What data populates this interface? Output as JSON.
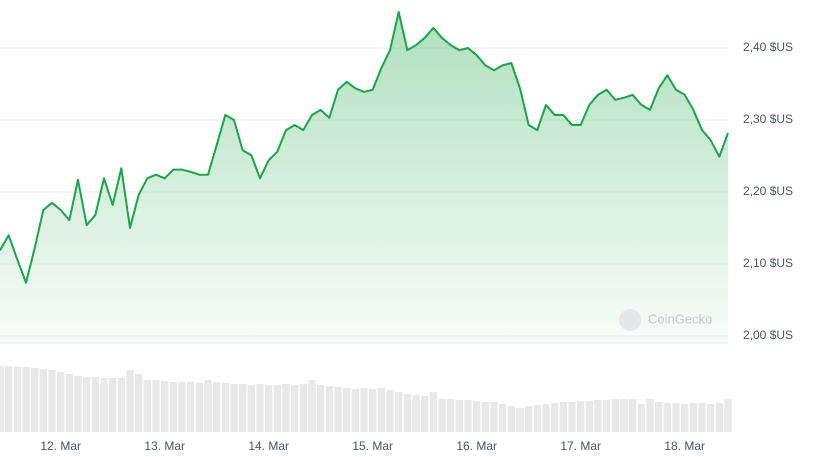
{
  "chart_data": {
    "type": "line",
    "categories": [
      null,
      null,
      null,
      null,
      null,
      null,
      null,
      "12. Mar",
      null,
      null,
      null,
      null,
      null,
      null,
      null,
      null,
      null,
      null,
      null,
      "13. Mar",
      null,
      null,
      null,
      null,
      null,
      null,
      null,
      null,
      null,
      null,
      null,
      "14. Mar",
      null,
      null,
      null,
      null,
      null,
      null,
      null,
      null,
      null,
      null,
      null,
      "15. Mar",
      null,
      null,
      null,
      null,
      null,
      null,
      null,
      null,
      null,
      null,
      null,
      "16. Mar",
      null,
      null,
      null,
      null,
      null,
      null,
      null,
      null,
      null,
      null,
      null,
      "17. Mar",
      null,
      null,
      null,
      null,
      null,
      null,
      null,
      null,
      null,
      null,
      null,
      "18. Mar",
      null,
      null,
      null,
      null,
      null
    ],
    "series": [
      {
        "color": "#1aa547",
        "values": [
          2.119,
          2.14,
          2.106,
          2.074,
          2.122,
          2.175,
          2.185,
          2.175,
          2.161,
          2.217,
          2.154,
          2.168,
          2.219,
          2.182,
          2.233,
          2.15,
          2.196,
          2.219,
          2.224,
          2.219,
          2.231,
          2.231,
          2.228,
          2.224,
          2.224,
          2.265,
          2.307,
          2.3,
          2.258,
          2.251,
          2.219,
          2.244,
          2.256,
          2.286,
          2.293,
          2.286,
          2.307,
          2.314,
          2.303,
          2.342,
          2.353,
          2.344,
          2.339,
          2.342,
          2.372,
          2.397,
          2.45,
          2.397,
          2.404,
          2.414,
          2.428,
          2.414,
          2.404,
          2.397,
          2.4,
          2.39,
          2.376,
          2.369,
          2.376,
          2.379,
          2.344,
          2.293,
          2.286,
          2.321,
          2.307,
          2.307,
          2.293,
          2.293,
          2.321,
          2.335,
          2.342,
          2.328,
          2.331,
          2.335,
          2.321,
          2.314,
          2.344,
          2.362,
          2.342,
          2.335,
          2.314,
          2.286,
          2.272,
          2.249,
          2.282
        ]
      },
      {
        "type": "bar",
        "axis": "y2",
        "color": "#e8e8e8",
        "values": [
          66,
          66,
          65,
          65,
          64,
          63,
          62,
          60,
          58,
          56,
          55,
          55,
          54,
          54,
          54,
          62,
          58,
          52,
          52,
          51,
          50,
          50,
          50,
          49,
          52,
          50,
          49,
          48,
          48,
          47,
          48,
          47,
          47,
          48,
          47,
          48,
          52,
          47,
          46,
          45,
          44,
          43,
          44,
          43,
          44,
          42,
          40,
          38,
          37,
          36,
          40,
          33,
          33,
          32,
          32,
          31,
          30,
          30,
          28,
          26,
          24,
          26,
          27,
          28,
          29,
          30,
          30,
          31,
          31,
          32,
          32,
          33,
          33,
          33,
          28,
          33,
          30,
          29,
          29,
          28,
          29,
          29,
          28,
          29,
          33
        ]
      }
    ],
    "ylim": [
      1.99,
      2.46
    ],
    "yticks": [
      {
        "value": 2.0,
        "label": "2,00 $US"
      },
      {
        "value": 2.1,
        "label": "2,10 $US"
      },
      {
        "value": 2.2,
        "label": "2,20 $US"
      },
      {
        "value": 2.3,
        "label": "2,30 $US"
      },
      {
        "value": 2.4,
        "label": "2,40 $US"
      }
    ],
    "y2lim": [
      0,
      70
    ],
    "grid": true,
    "watermark": "CoinGecko"
  }
}
